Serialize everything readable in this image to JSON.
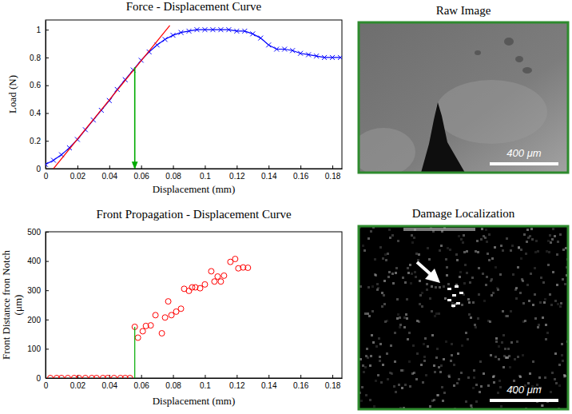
{
  "chart_data": [
    {
      "type": "line",
      "title": "Force - Displacement Curve",
      "xlabel": "Displacement (mm)",
      "ylabel": [
        "Load (N)"
      ],
      "xlim": [
        0,
        0.186
      ],
      "xticks": [
        0,
        0.02,
        0.04,
        0.06,
        0.08,
        0.1,
        0.12,
        0.14,
        0.16,
        0.18
      ],
      "ylim": [
        0,
        1.07
      ],
      "yticks": [
        0,
        0.2,
        0.4,
        0.6,
        0.8,
        1
      ],
      "series": [
        {
          "type": "line",
          "color": "#0000ff",
          "marker": "x",
          "x": [
            0,
            0.005,
            0.01,
            0.015,
            0.02,
            0.025,
            0.03,
            0.035,
            0.04,
            0.045,
            0.05,
            0.055,
            0.06,
            0.065,
            0.07,
            0.075,
            0.08,
            0.085,
            0.09,
            0.095,
            0.1,
            0.105,
            0.11,
            0.115,
            0.12,
            0.125,
            0.13,
            0.135,
            0.14,
            0.145,
            0.15,
            0.155,
            0.16,
            0.165,
            0.17,
            0.175,
            0.18,
            0.185
          ],
          "values": [
            0.03,
            0.06,
            0.1,
            0.15,
            0.21,
            0.28,
            0.35,
            0.42,
            0.49,
            0.57,
            0.64,
            0.71,
            0.78,
            0.84,
            0.89,
            0.93,
            0.96,
            0.98,
            0.99,
            1.0,
            1.0,
            1.0,
            1.0,
            1.0,
            0.99,
            0.99,
            0.97,
            0.94,
            0.89,
            0.86,
            0.86,
            0.85,
            0.83,
            0.82,
            0.81,
            0.8,
            0.8,
            0.8
          ]
        },
        {
          "type": "line",
          "color": "#ff0000",
          "line_style": "solid",
          "x": [
            0.005,
            0.078
          ],
          "values": [
            0,
            1.03
          ]
        },
        {
          "type": "line",
          "color": "#00aa00",
          "marker": "arrow",
          "x": [
            0.056,
            0.056
          ],
          "values": [
            0.73,
            0
          ]
        }
      ]
    },
    {
      "type": "scatter",
      "title": "Front Propagation - Displacement Curve",
      "xlabel": "Displacement (mm)",
      "ylabel": [
        "Front Distance fron Notch",
        "(μm)"
      ],
      "xlim": [
        0,
        0.186
      ],
      "xticks": [
        0,
        0.02,
        0.04,
        0.06,
        0.08,
        0.1,
        0.12,
        0.14,
        0.16,
        0.18
      ],
      "ylim": [
        0,
        500
      ],
      "yticks": [
        0,
        100,
        200,
        300,
        400,
        500
      ],
      "series": [
        {
          "type": "scatter",
          "color": "#ff0000",
          "marker": "o",
          "x": [
            0.003,
            0.007,
            0.01,
            0.014,
            0.018,
            0.021,
            0.025,
            0.029,
            0.032,
            0.036,
            0.039,
            0.043,
            0.047,
            0.05,
            0.053,
            0.056,
            0.058,
            0.061,
            0.063,
            0.066,
            0.069,
            0.073,
            0.075,
            0.077,
            0.079,
            0.082,
            0.085,
            0.087,
            0.09,
            0.092,
            0.094,
            0.097,
            0.1,
            0.104,
            0.106,
            0.108,
            0.11,
            0.112,
            0.116,
            0.119,
            0.121,
            0.124,
            0.127
          ],
          "values": [
            0,
            0,
            0,
            0,
            0,
            0,
            0,
            0,
            0,
            0,
            0,
            0,
            0,
            0,
            0,
            175,
            138,
            160,
            178,
            180,
            215,
            153,
            207,
            262,
            215,
            227,
            237,
            305,
            298,
            310,
            310,
            307,
            320,
            365,
            330,
            347,
            330,
            350,
            397,
            407,
            375,
            378,
            377
          ]
        },
        {
          "type": "line",
          "color": "#00aa00",
          "line_style": "solid",
          "x": [
            0.056,
            0.056
          ],
          "values": [
            0,
            175
          ]
        }
      ]
    }
  ],
  "images": [
    {
      "title": "Raw Image",
      "scale_bar": "400 μm"
    },
    {
      "title": "Damage Localization",
      "scale_bar": "400 μm"
    }
  ]
}
